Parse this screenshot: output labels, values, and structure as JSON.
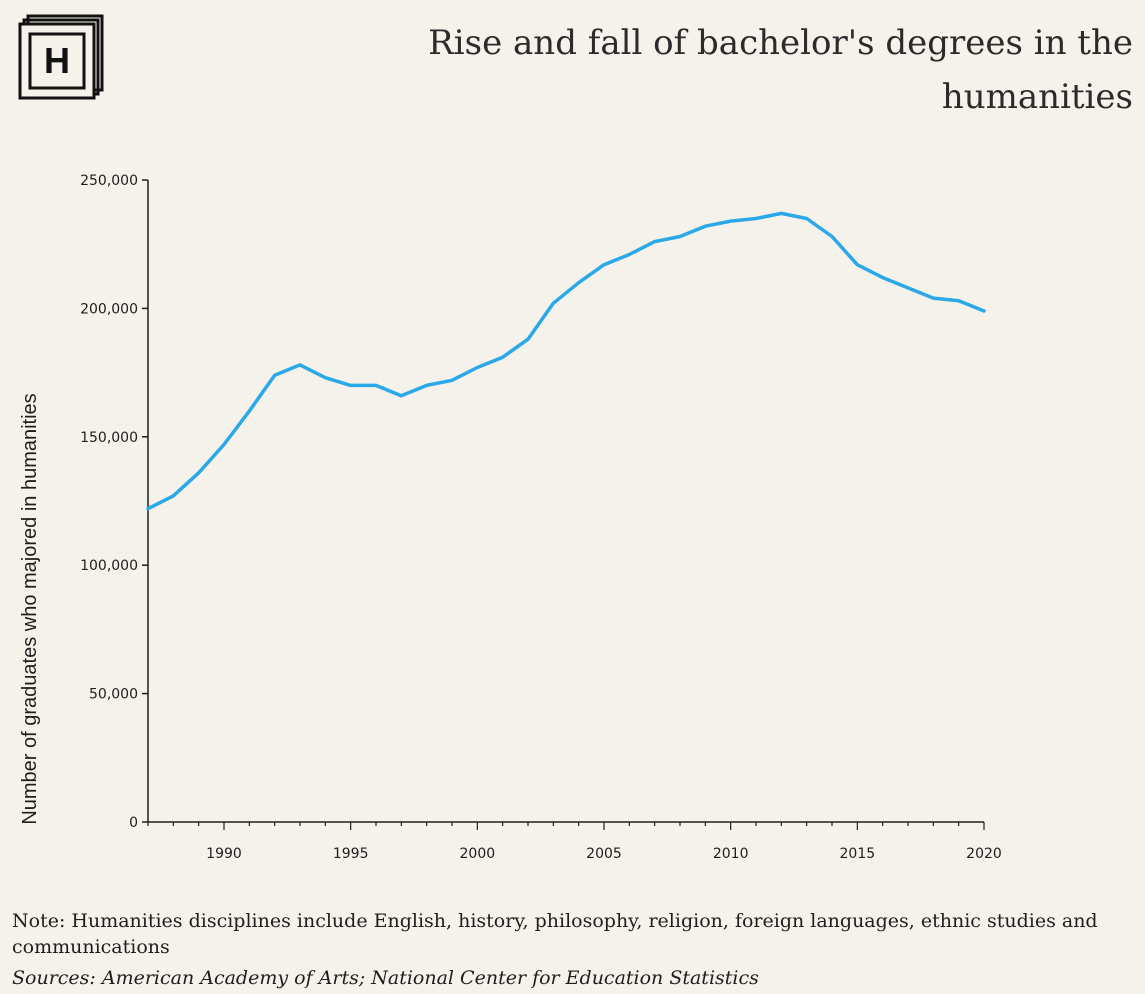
{
  "header": {
    "logo_letter": "H",
    "title": "Rise and fall of bachelor's degrees in the humanities"
  },
  "chart_data": {
    "type": "line",
    "title": "Rise and fall of bachelor's degrees in the humanities",
    "xlabel": "",
    "ylabel": "Number of graduates who majored in humanities",
    "xlim": [
      1987,
      2020
    ],
    "ylim": [
      0,
      250000
    ],
    "x_ticks": [
      1990,
      1995,
      2000,
      2005,
      2010,
      2015,
      2020
    ],
    "y_ticks": [
      0,
      50000,
      100000,
      150000,
      200000,
      250000
    ],
    "y_tick_labels": [
      "0",
      "50,000",
      "100,000",
      "150,000",
      "200,000",
      "250,000"
    ],
    "grid": false,
    "line_color": "#2aa8e8",
    "series": [
      {
        "x": [
          1987,
          1988,
          1989,
          1990,
          1991,
          1992,
          1993,
          1994,
          1995,
          1996,
          1997,
          1998,
          1999,
          2000,
          2001,
          2002,
          2003,
          2004,
          2005,
          2006,
          2007,
          2008,
          2009,
          2010,
          2011,
          2012,
          2013,
          2014,
          2015,
          2016,
          2017,
          2018,
          2019,
          2020
        ],
        "values": [
          122000,
          127000,
          136000,
          147000,
          160000,
          174000,
          178000,
          173000,
          170000,
          170000,
          166000,
          170000,
          172000,
          177000,
          181000,
          188000,
          202000,
          210000,
          217000,
          221000,
          226000,
          228000,
          232000,
          234000,
          235000,
          237000,
          235000,
          228000,
          217000,
          212000,
          208000,
          204000,
          203000,
          199000
        ]
      }
    ]
  },
  "footer": {
    "note": "Note: Humanities disciplines include English, history, philosophy, religion, foreign languages, ethnic studies and communications",
    "sources": "Sources: American Academy of Arts; National Center for Education Statistics"
  }
}
